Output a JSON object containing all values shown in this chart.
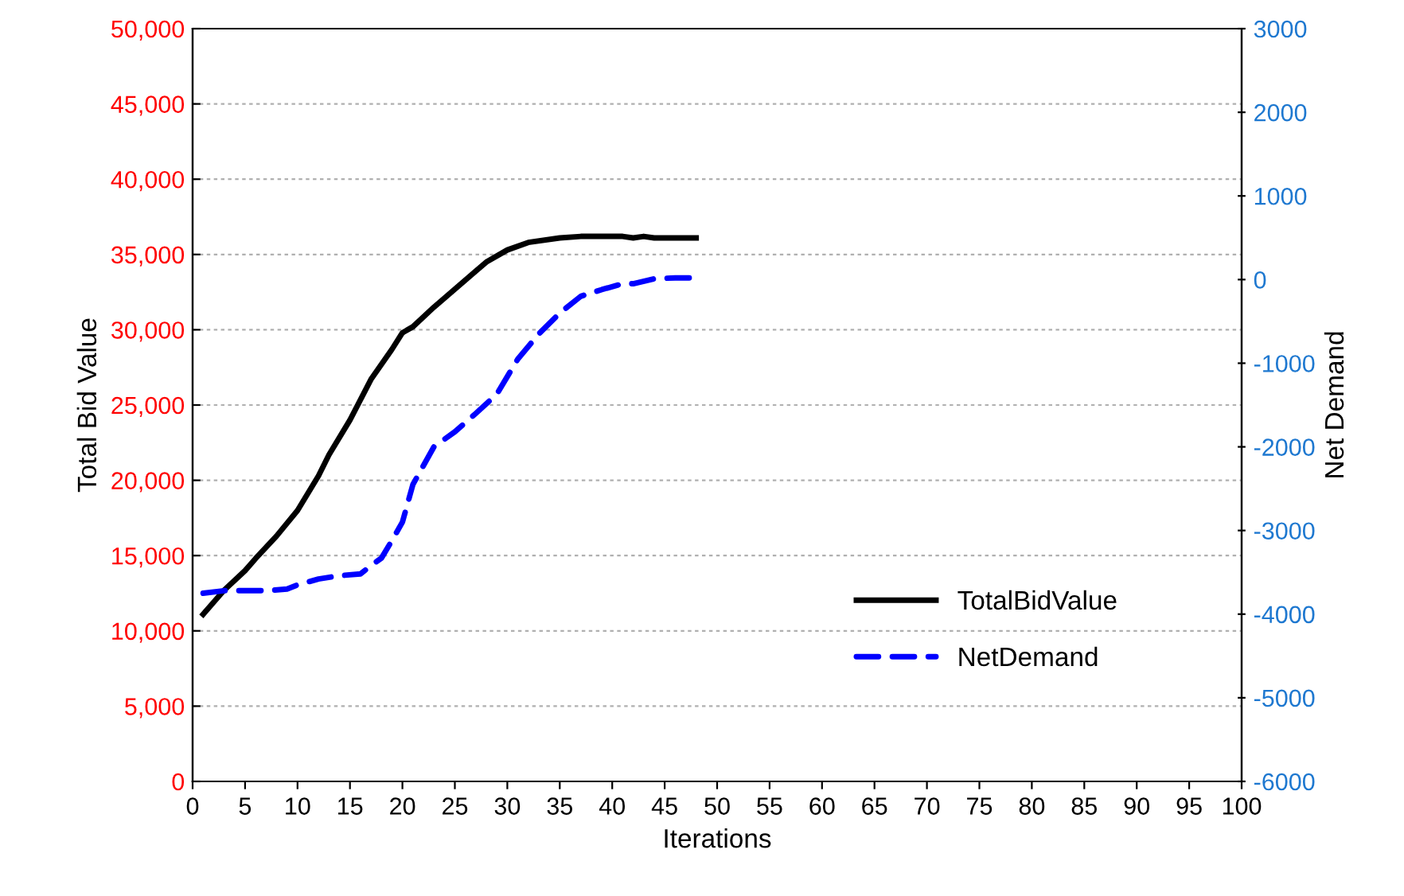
{
  "chart_data": {
    "type": "line",
    "xlabel": "Iterations",
    "ylabel": "Total Bid Value",
    "y2label": "Net Demand",
    "xlim": [
      0,
      100
    ],
    "xticks": [
      0,
      5,
      10,
      15,
      20,
      25,
      30,
      35,
      40,
      45,
      50,
      55,
      60,
      65,
      70,
      75,
      80,
      85,
      90,
      95,
      100
    ],
    "ylim": [
      0,
      50000
    ],
    "yticks": [
      {
        "value": 0,
        "label": "0"
      },
      {
        "value": 5000,
        "label": "5,000"
      },
      {
        "value": 10000,
        "label": "10,000"
      },
      {
        "value": 15000,
        "label": "15,000"
      },
      {
        "value": 20000,
        "label": "20,000"
      },
      {
        "value": 25000,
        "label": "25,000"
      },
      {
        "value": 30000,
        "label": "30,000"
      },
      {
        "value": 35000,
        "label": "35,000"
      },
      {
        "value": 40000,
        "label": "40,000"
      },
      {
        "value": 45000,
        "label": "45,000"
      },
      {
        "value": 50000,
        "label": "50,000"
      }
    ],
    "y2lim": [
      -6000,
      3000
    ],
    "y2ticks": [
      -6000,
      -5000,
      -4000,
      -3000,
      -2000,
      -1000,
      0,
      1000,
      2000,
      3000
    ],
    "grid": "y",
    "legend": "right",
    "series": [
      {
        "name": "TotalBidValue",
        "color": "#000000",
        "line_style": "solid",
        "x": [
          1,
          3,
          5,
          6,
          8,
          10,
          12,
          13,
          15,
          17,
          19,
          20,
          21,
          23,
          25,
          27,
          28,
          30,
          32,
          35,
          37,
          41,
          42,
          43,
          44,
          48
        ],
        "values": [
          11100,
          12700,
          14000,
          14800,
          16300,
          18000,
          20300,
          21700,
          24000,
          26700,
          28700,
          29800,
          30200,
          31500,
          32700,
          33900,
          34500,
          35300,
          35800,
          36100,
          36200,
          36200,
          36100,
          36200,
          36100,
          36100
        ]
      },
      {
        "name": "NetDemand",
        "color": "#0000ff",
        "line_style": "dashed",
        "axis": "y2",
        "x": [
          1,
          3,
          7,
          9,
          10,
          12,
          14,
          16,
          17,
          18,
          19,
          20,
          21,
          23,
          25,
          27,
          29,
          31,
          33,
          35,
          37,
          39,
          41,
          42,
          44,
          46,
          48
        ],
        "values": [
          -3750,
          -3720,
          -3720,
          -3700,
          -3650,
          -3580,
          -3540,
          -3520,
          -3420,
          -3330,
          -3120,
          -2900,
          -2450,
          -2000,
          -1820,
          -1600,
          -1370,
          -950,
          -650,
          -400,
          -200,
          -120,
          -50,
          -50,
          10,
          20,
          20
        ]
      }
    ]
  }
}
